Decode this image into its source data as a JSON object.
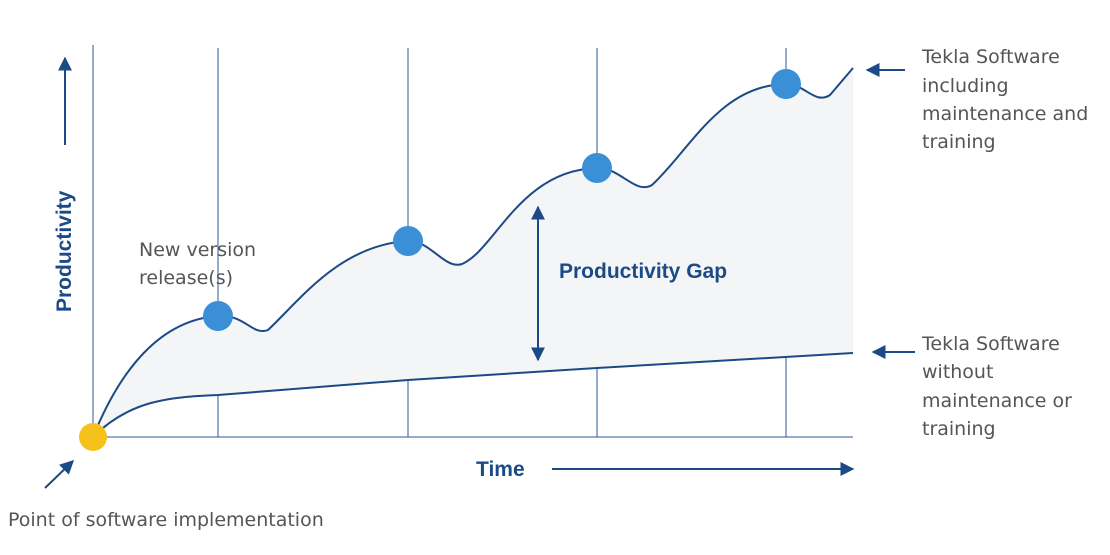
{
  "diagram": {
    "y_axis_label": "Productivity",
    "x_axis_label": "Time",
    "release_label": [
      "New version",
      "release(s)"
    ],
    "gap_label": "Productivity Gap",
    "upper_curve_label": [
      "Tekla Software",
      "including",
      "maintenance and",
      "training"
    ],
    "lower_curve_label": [
      "Tekla Software",
      "without",
      "maintenance or",
      "training"
    ],
    "origin_label": "Point of software implementation"
  }
}
